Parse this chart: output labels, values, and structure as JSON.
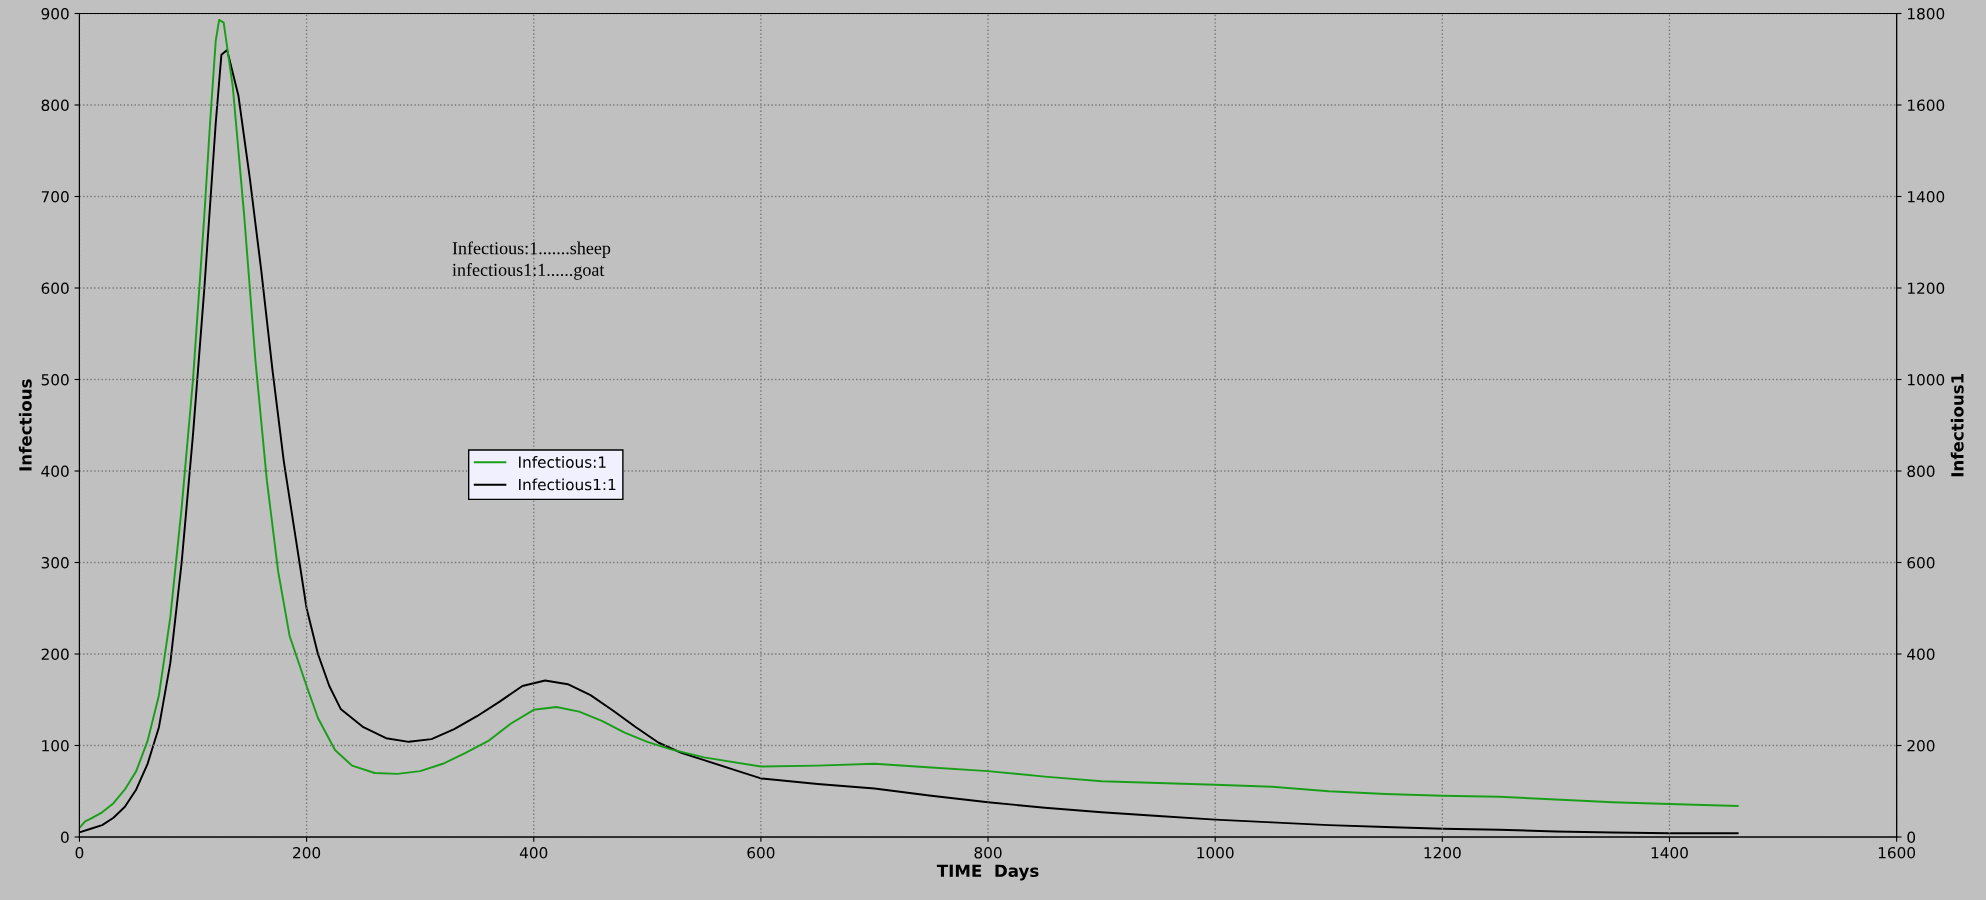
{
  "chart_data": {
    "type": "line",
    "xlabel": "TIME  Days",
    "ylabel": "Infectious",
    "y2label": "Infectious1",
    "xlim": [
      0,
      1600
    ],
    "xticks": [
      0,
      200,
      400,
      600,
      800,
      1000,
      1200,
      1400,
      1600
    ],
    "ylim": [
      0,
      900
    ],
    "yticks": [
      0,
      100,
      200,
      300,
      400,
      500,
      600,
      700,
      800,
      900
    ],
    "y2lim": [
      0,
      1800
    ],
    "y2ticks": [
      0,
      200,
      400,
      600,
      800,
      1000,
      1200,
      1400,
      1600,
      1800
    ],
    "grid": true,
    "legend": "center left",
    "line_style": "solid",
    "marker": "none",
    "annotations": [
      "Infectious:1.......sheep\ninfectious1:1......goat"
    ],
    "series": [
      {
        "name": "Infectious:1",
        "color": "#1a9e1a",
        "x": [
          0,
          5,
          10,
          20,
          30,
          40,
          50,
          60,
          70,
          80,
          90,
          100,
          110,
          115,
          120,
          123,
          127,
          135,
          145,
          155,
          165,
          175,
          185,
          200,
          210,
          225,
          240,
          260,
          280,
          300,
          320,
          340,
          360,
          380,
          400,
          420,
          440,
          460,
          480,
          500,
          520,
          550,
          600,
          650,
          700,
          750,
          800,
          850,
          900,
          950,
          1000,
          1050,
          1100,
          1150,
          1200,
          1250,
          1300,
          1350,
          1400,
          1460
        ],
        "values": [
          10,
          17,
          20,
          27,
          37,
          52,
          72,
          105,
          155,
          240,
          360,
          500,
          680,
          780,
          870,
          893,
          890,
          820,
          680,
          520,
          390,
          290,
          220,
          165,
          130,
          95,
          78,
          70,
          69,
          72,
          80,
          92,
          105,
          124,
          139,
          142,
          137,
          127,
          114,
          104,
          96,
          87,
          77,
          78,
          80,
          76,
          72,
          66,
          61,
          59,
          57,
          55,
          50,
          47,
          45,
          44,
          41,
          38,
          36,
          34
        ]
      },
      {
        "name": "Infectious1:1",
        "color": "#000000",
        "axis": "y2",
        "x": [
          0,
          10,
          20,
          30,
          40,
          50,
          60,
          70,
          80,
          90,
          100,
          110,
          120,
          125,
          130,
          140,
          150,
          160,
          170,
          180,
          190,
          200,
          210,
          220,
          230,
          250,
          270,
          290,
          310,
          330,
          350,
          370,
          390,
          410,
          430,
          450,
          470,
          490,
          510,
          530,
          550,
          580,
          600,
          650,
          700,
          750,
          800,
          850,
          900,
          950,
          1000,
          1050,
          1100,
          1150,
          1200,
          1250,
          1300,
          1350,
          1400,
          1460
        ],
        "values": [
          10,
          18,
          26,
          42,
          66,
          104,
          160,
          240,
          380,
          600,
          880,
          1200,
          1560,
          1710,
          1720,
          1620,
          1440,
          1240,
          1020,
          820,
          660,
          500,
          400,
          330,
          280,
          240,
          216,
          208,
          214,
          236,
          264,
          296,
          330,
          342,
          334,
          310,
          276,
          240,
          206,
          184,
          168,
          144,
          128,
          116,
          106,
          90,
          76,
          64,
          54,
          46,
          38,
          32,
          26,
          22,
          18,
          16,
          12,
          10,
          8,
          8
        ]
      }
    ]
  }
}
